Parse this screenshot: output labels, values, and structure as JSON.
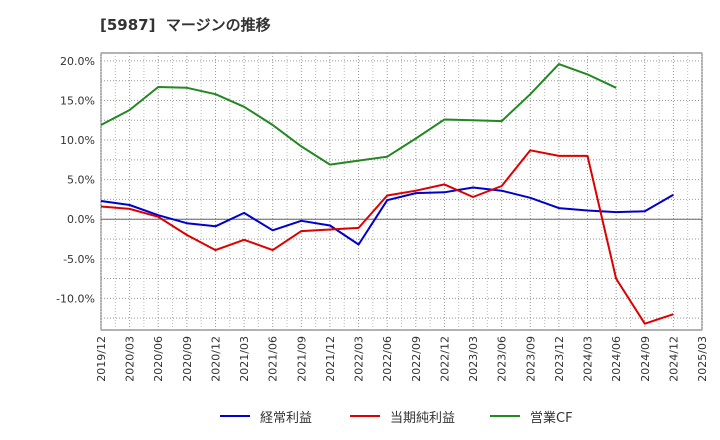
{
  "chart_data": {
    "type": "line",
    "title": "[5987]  マージンの推移",
    "xlabel": "",
    "ylabel": "",
    "x": [
      "2019/12",
      "2020/03",
      "2020/06",
      "2020/09",
      "2020/12",
      "2021/03",
      "2021/06",
      "2021/09",
      "2021/12",
      "2022/03",
      "2022/06",
      "2022/09",
      "2022/12",
      "2023/03",
      "2023/06",
      "2023/09",
      "2023/12",
      "2024/03",
      "2024/06",
      "2024/09",
      "2024/12",
      "2025/03"
    ],
    "y_ticks": [
      "20.0%",
      "15.0%",
      "10.0%",
      "5.0%",
      "0.0%",
      "-5.0%",
      "-10.0%"
    ],
    "ylim": [
      -14.0,
      21.0
    ],
    "grid": true,
    "legend_position": "bottom",
    "series": [
      {
        "name": "経常利益",
        "color": "#0000cc",
        "values": [
          2.3,
          1.8,
          0.5,
          -0.5,
          -0.9,
          0.8,
          -1.4,
          -0.2,
          -0.8,
          -3.2,
          2.4,
          3.3,
          3.4,
          4.0,
          3.6,
          2.7,
          1.4,
          1.1,
          0.9,
          1.0,
          3.1,
          null
        ]
      },
      {
        "name": "当期純利益",
        "color": "#dd0000",
        "values": [
          1.6,
          1.3,
          0.3,
          -2.0,
          -3.9,
          -2.6,
          -3.9,
          -1.5,
          -1.3,
          -1.1,
          3.0,
          3.6,
          4.4,
          2.8,
          4.2,
          8.7,
          8.0,
          8.0,
          -7.5,
          -13.2,
          -12.0,
          null
        ]
      },
      {
        "name": "営業CF",
        "color": "#228822",
        "values": [
          11.9,
          13.8,
          16.7,
          16.6,
          15.8,
          14.2,
          11.9,
          9.2,
          6.9,
          7.4,
          7.9,
          10.2,
          12.6,
          12.5,
          12.4,
          15.8,
          19.6,
          18.3,
          16.6,
          null,
          null,
          null
        ]
      }
    ]
  }
}
